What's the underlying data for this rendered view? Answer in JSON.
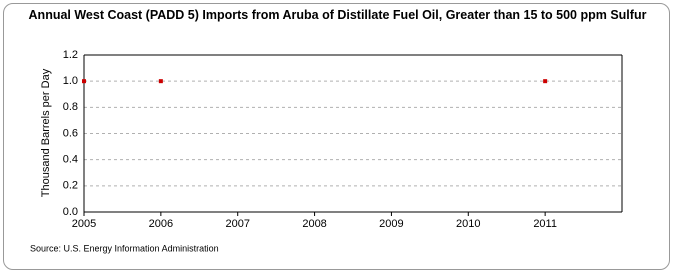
{
  "chart_data": {
    "type": "scatter",
    "title": "Annual West Coast (PADD 5) Imports from Aruba of Distillate Fuel Oil, Greater than 15 to 500 ppm Sulfur",
    "y_label": "Thousand Barrels per Day",
    "source": "Source: U.S. Energy Information Administration",
    "x": [
      2005,
      2006,
      2011
    ],
    "values": [
      1,
      1,
      1
    ],
    "color": "#cc0000",
    "xlim": [
      2005,
      2012
    ],
    "xticks": [
      2005,
      2006,
      2007,
      2008,
      2009,
      2010,
      2011
    ],
    "ylim": [
      0,
      1.2
    ],
    "yticks": [
      {
        "value": 0,
        "label": "0.0"
      },
      0.2,
      0.4,
      0.6,
      0.8,
      {
        "value": 1,
        "label": "1.0"
      },
      1.2
    ],
    "grid": true
  }
}
